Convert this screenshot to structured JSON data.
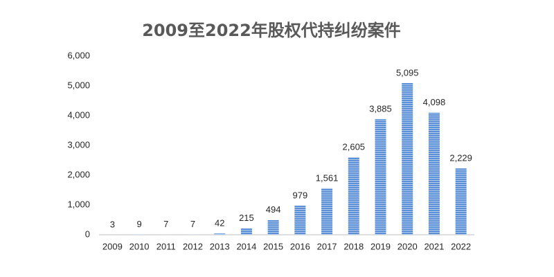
{
  "chart_data": {
    "type": "bar",
    "title": "2009至2022年股权代持纠纷案件",
    "categories": [
      "2009",
      "2010",
      "2011",
      "2012",
      "2013",
      "2014",
      "2015",
      "2016",
      "2017",
      "2018",
      "2019",
      "2020",
      "2021",
      "2022"
    ],
    "values": [
      3,
      9,
      7,
      7,
      42,
      215,
      494,
      979,
      1561,
      2605,
      3885,
      5095,
      4098,
      2229
    ],
    "value_labels": [
      "3",
      "9",
      "7",
      "7",
      "42",
      "215",
      "494",
      "979",
      "1,561",
      "2,605",
      "3,885",
      "5,095",
      "4,098",
      "2,229"
    ],
    "color": "#5b8fd6",
    "ylim": [
      0,
      6000
    ],
    "yticks": [
      0,
      {
        "value": 1000,
        "label": "1,000"
      },
      {
        "value": 2000,
        "label": "2,000"
      },
      {
        "value": 3000,
        "label": "3,000"
      },
      {
        "value": 4000,
        "label": "4,000"
      },
      {
        "value": 5000,
        "label": "5,000"
      },
      {
        "value": 6000,
        "label": "6,000"
      }
    ],
    "grid": false
  }
}
